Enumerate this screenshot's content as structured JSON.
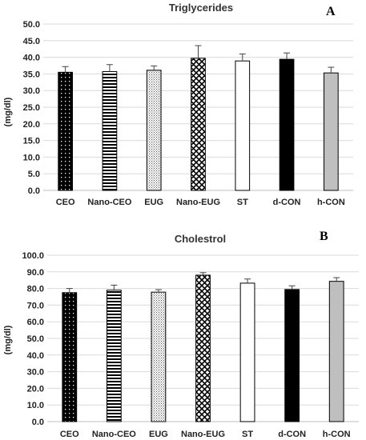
{
  "chart_data": [
    {
      "type": "bar",
      "title": "Triglycerides",
      "panel_label": "A",
      "ylabel": "(mg/dl)",
      "ylim": [
        0,
        50
      ],
      "y_tick_step": 5,
      "y_tick_labels": [
        "0.0",
        "5.0",
        "10.0",
        "15.0",
        "20.0",
        "25.0",
        "30.0",
        "35.0",
        "40.0",
        "45.0",
        "50.0"
      ],
      "grid": true,
      "categories": [
        "CEO",
        "Nano-CEO",
        "EUG",
        "Nano-EUG",
        "ST",
        "d-CON",
        "h-CON"
      ],
      "values": [
        35.5,
        35.7,
        36.1,
        39.7,
        38.9,
        39.4,
        35.3
      ],
      "errors": [
        1.7,
        2.1,
        1.3,
        3.8,
        2.1,
        1.9,
        1.7
      ],
      "patterns": [
        "dots-dark",
        "hstripes",
        "stipple-light",
        "crosshatch",
        "white",
        "black",
        "gray"
      ]
    },
    {
      "type": "bar",
      "title": "Cholestrol",
      "panel_label": "B",
      "ylabel": "(mg/dl)",
      "ylim": [
        0,
        100
      ],
      "y_tick_step": 10,
      "y_tick_labels": [
        "0.0",
        "10.0",
        "20.0",
        "30.0",
        "40.0",
        "50.0",
        "60.0",
        "70.0",
        "80.0",
        "90.0",
        "100.0"
      ],
      "grid": true,
      "categories": [
        "CEO",
        "Nano-CEO",
        "EUG",
        "Nano-EUG",
        "ST",
        "d-CON",
        "h-CON"
      ],
      "values": [
        77.5,
        79.0,
        77.8,
        88.0,
        83.2,
        79.4,
        84.3
      ],
      "errors": [
        2.5,
        3.0,
        1.5,
        1.5,
        2.5,
        2.2,
        2.2
      ],
      "patterns": [
        "dots-dark",
        "hstripes",
        "stipple-light",
        "crosshatch",
        "white",
        "black",
        "gray"
      ]
    }
  ],
  "colors": {
    "grid": "#d9d9d9",
    "axis": "#bfbfbf",
    "bar_outline": "#000000",
    "gray_bar": "#bfbfbf",
    "error_bar": "#444444"
  }
}
